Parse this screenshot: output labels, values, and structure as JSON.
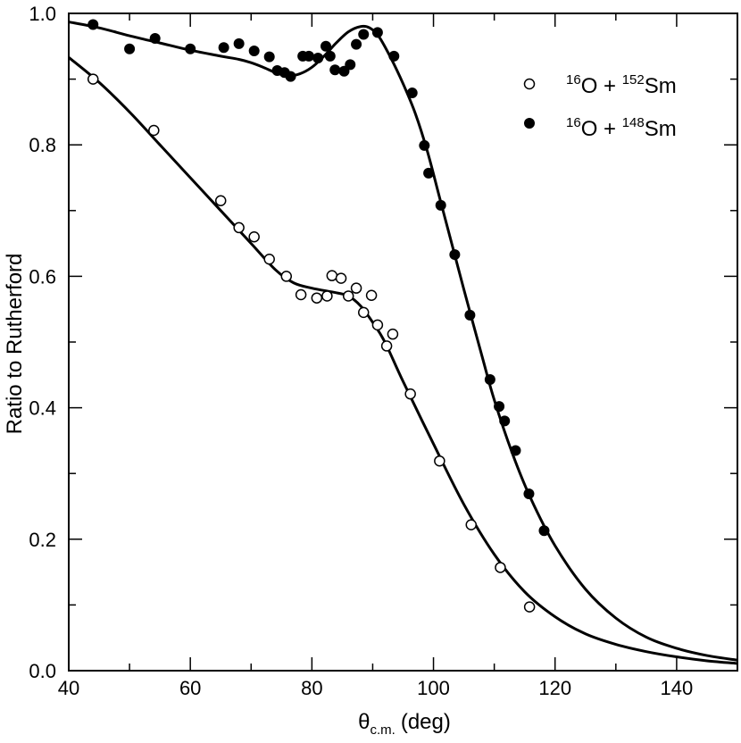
{
  "chart_data": {
    "type": "scatter",
    "title": "",
    "xlabel": "θ",
    "xlabel_sub": "c.m.",
    "xlabel_unit": "(deg)",
    "ylabel": "Ratio to Rutherford",
    "xlim": [
      40,
      150
    ],
    "ylim": [
      0,
      1.0
    ],
    "x_major_ticks": [
      40,
      60,
      80,
      100,
      120,
      140
    ],
    "x_minor_ticks": [
      50,
      70,
      90,
      110,
      130,
      150
    ],
    "y_major_ticks": [
      0.0,
      0.2,
      0.4,
      0.6,
      0.8,
      1.0
    ],
    "y_minor_ticks": [
      0.1,
      0.3,
      0.5,
      0.7,
      0.9
    ],
    "x_tick_labels": [
      "40",
      "60",
      "80",
      "100",
      "120",
      "140"
    ],
    "y_tick_labels": [
      "0.0",
      "0.2",
      "0.4",
      "0.6",
      "0.8",
      "1.0"
    ],
    "legend_position": "top-right",
    "series": [
      {
        "name": "16O + 152Sm",
        "legend": {
          "sup1": "16",
          "base1": "O + ",
          "sup2": "152",
          "base2": "Sm"
        },
        "marker": "open-circle",
        "points": [
          [
            44,
            0.9
          ],
          [
            54,
            0.822
          ],
          [
            65,
            0.715
          ],
          [
            68,
            0.674
          ],
          [
            70.5,
            0.66
          ],
          [
            73,
            0.626
          ],
          [
            75.8,
            0.6
          ],
          [
            78.2,
            0.572
          ],
          [
            80.8,
            0.567
          ],
          [
            82.5,
            0.57
          ],
          [
            83.3,
            0.601
          ],
          [
            84.8,
            0.597
          ],
          [
            86,
            0.57
          ],
          [
            87.3,
            0.582
          ],
          [
            88.5,
            0.545
          ],
          [
            89.8,
            0.571
          ],
          [
            90.8,
            0.526
          ],
          [
            92.3,
            0.494
          ],
          [
            93.3,
            0.512
          ],
          [
            96.2,
            0.421
          ],
          [
            101,
            0.319
          ],
          [
            106.2,
            0.222
          ],
          [
            111,
            0.157
          ],
          [
            115.8,
            0.097
          ]
        ],
        "fit_curve": [
          [
            40,
            0.933
          ],
          [
            45,
            0.895
          ],
          [
            50,
            0.85
          ],
          [
            55,
            0.8
          ],
          [
            60,
            0.75
          ],
          [
            65,
            0.7
          ],
          [
            70,
            0.65
          ],
          [
            74,
            0.61
          ],
          [
            77,
            0.59
          ],
          [
            80,
            0.582
          ],
          [
            84,
            0.575
          ],
          [
            86,
            0.57
          ],
          [
            88,
            0.555
          ],
          [
            90,
            0.53
          ],
          [
            92,
            0.5
          ],
          [
            95,
            0.44
          ],
          [
            100,
            0.345
          ],
          [
            105,
            0.253
          ],
          [
            110,
            0.177
          ],
          [
            115,
            0.12
          ],
          [
            120,
            0.082
          ],
          [
            125,
            0.056
          ],
          [
            130,
            0.04
          ],
          [
            135,
            0.029
          ],
          [
            140,
            0.021
          ],
          [
            145,
            0.015
          ],
          [
            150,
            0.011
          ]
        ]
      },
      {
        "name": "16O + 148Sm",
        "legend": {
          "sup1": "16",
          "base1": "O + ",
          "sup2": "148",
          "base2": "Sm"
        },
        "marker": "filled-circle",
        "points": [
          [
            44,
            0.983
          ],
          [
            50,
            0.946
          ],
          [
            54.2,
            0.962
          ],
          [
            60,
            0.946
          ],
          [
            65.5,
            0.948
          ],
          [
            68,
            0.954
          ],
          [
            70.5,
            0.943
          ],
          [
            73,
            0.934
          ],
          [
            74.3,
            0.913
          ],
          [
            75.5,
            0.91
          ],
          [
            76.5,
            0.904
          ],
          [
            78.5,
            0.935
          ],
          [
            79.5,
            0.935
          ],
          [
            81,
            0.932
          ],
          [
            82.3,
            0.95
          ],
          [
            83,
            0.935
          ],
          [
            83.8,
            0.914
          ],
          [
            85.3,
            0.912
          ],
          [
            86.3,
            0.922
          ],
          [
            87.3,
            0.953
          ],
          [
            88.5,
            0.968
          ],
          [
            90.8,
            0.971
          ],
          [
            93.5,
            0.935
          ],
          [
            96.5,
            0.879
          ],
          [
            98.5,
            0.799
          ],
          [
            99.2,
            0.757
          ],
          [
            101.2,
            0.708
          ],
          [
            103.5,
            0.633
          ],
          [
            106,
            0.541
          ],
          [
            109.3,
            0.443
          ],
          [
            110.8,
            0.402
          ],
          [
            111.7,
            0.38
          ],
          [
            113.5,
            0.335
          ],
          [
            115.7,
            0.269
          ],
          [
            118.2,
            0.213
          ]
        ],
        "fit_curve": [
          [
            40,
            0.987
          ],
          [
            45,
            0.978
          ],
          [
            50,
            0.966
          ],
          [
            55,
            0.955
          ],
          [
            60,
            0.944
          ],
          [
            65,
            0.935
          ],
          [
            68,
            0.93
          ],
          [
            70,
            0.925
          ],
          [
            72,
            0.918
          ],
          [
            74,
            0.91
          ],
          [
            76,
            0.905
          ],
          [
            78,
            0.908
          ],
          [
            80,
            0.918
          ],
          [
            82,
            0.935
          ],
          [
            84,
            0.955
          ],
          [
            86,
            0.972
          ],
          [
            88,
            0.98
          ],
          [
            89.5,
            0.978
          ],
          [
            91,
            0.965
          ],
          [
            93,
            0.932
          ],
          [
            95,
            0.893
          ],
          [
            97,
            0.848
          ],
          [
            99,
            0.79
          ],
          [
            101,
            0.72
          ],
          [
            103,
            0.65
          ],
          [
            105,
            0.58
          ],
          [
            108,
            0.478
          ],
          [
            110,
            0.412
          ],
          [
            113,
            0.33
          ],
          [
            116,
            0.262
          ],
          [
            120,
            0.19
          ],
          [
            125,
            0.124
          ],
          [
            130,
            0.08
          ],
          [
            135,
            0.051
          ],
          [
            140,
            0.034
          ],
          [
            145,
            0.023
          ],
          [
            150,
            0.016
          ]
        ]
      }
    ]
  }
}
